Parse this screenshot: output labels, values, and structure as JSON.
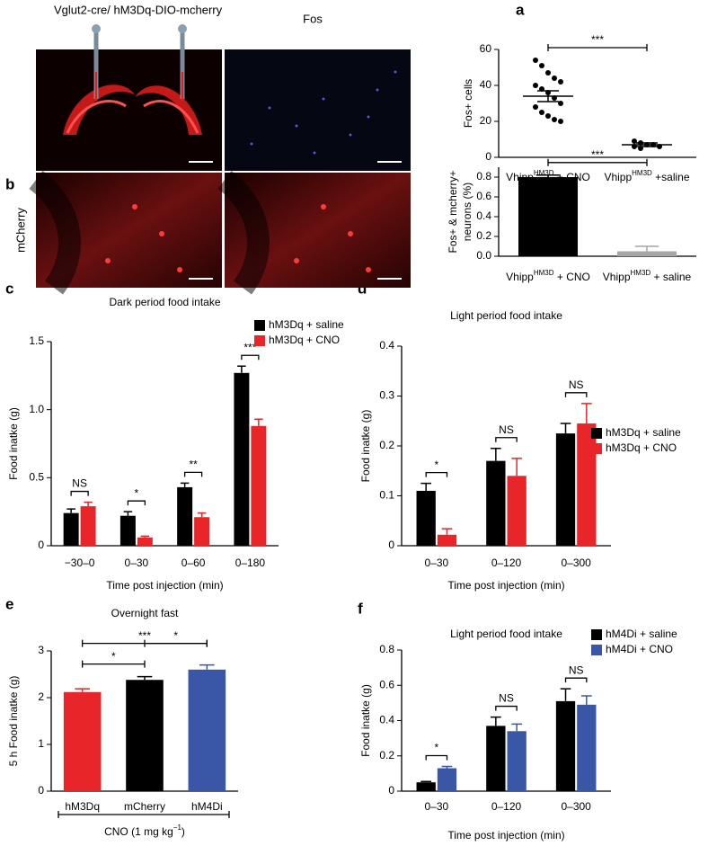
{
  "figure": {
    "header": "Vglut2-cre/ hM3Dq-DIO-mcherry",
    "panel_labels": [
      "a",
      "b",
      "c",
      "d",
      "e",
      "f"
    ],
    "image_labels": [
      "Fos",
      "mCherry"
    ]
  },
  "chart_data": [
    {
      "type": "dot",
      "ylabel": "Fos+ cells",
      "categories": [
        {
          "text": "Vhipp",
          "sup": "HM3D",
          "after": " + CNO"
        },
        {
          "text": "Vhipp",
          "sup": "HM3D",
          "after": " +saline"
        }
      ],
      "points": [
        [
          54,
          51,
          47,
          44,
          42,
          40,
          38,
          36,
          33,
          30,
          28,
          25,
          23,
          21,
          20
        ],
        [
          9,
          8,
          7,
          7,
          6,
          6,
          5
        ]
      ],
      "means": [
        34,
        7
      ],
      "errors": [
        3,
        1
      ],
      "color": "#000000",
      "ylim": [
        0,
        60
      ],
      "yticks": [
        0,
        20,
        40,
        60
      ],
      "comparisons": [
        {
          "label": "***",
          "groups": [
            0,
            1
          ]
        }
      ]
    },
    {
      "type": "bar",
      "ylabel": [
        "Fos+ & mcherry+",
        "neurons (%)"
      ],
      "categories": [
        {
          "text": "Vhipp",
          "sup": "HM3D",
          "after": " + CNO"
        },
        {
          "text": "Vhipp",
          "sup": "HM3D",
          "after": " + saline"
        }
      ],
      "values": [
        0.8,
        0.05
      ],
      "errors": [
        0.02,
        0.05
      ],
      "colors": [
        "#000000",
        "#a6a6a6"
      ],
      "ylim": [
        0,
        0.9
      ],
      "yticks": [
        {
          "value": 0,
          "label": "0.0"
        },
        0.2,
        0.4,
        0.6,
        0.8
      ],
      "comparisons": [
        {
          "label": "***",
          "groups": [
            0,
            1
          ]
        }
      ]
    },
    {
      "type": "grouped_bar",
      "title": "Dark period food intake",
      "ylabel": "Food inatke (g)",
      "xlabel": "Time post injection (min)",
      "categories": [
        "−30–0",
        "0–30",
        "0–60",
        "0–180"
      ],
      "series": [
        {
          "name": "hM3Dq + saline",
          "color": "#000000",
          "values": [
            0.24,
            0.22,
            0.43,
            1.27
          ],
          "errors": [
            0.03,
            0.03,
            0.03,
            0.05
          ]
        },
        {
          "name": "hM3Dq + CNO",
          "color": "#e8262a",
          "values": [
            0.29,
            0.06,
            0.21,
            0.88
          ],
          "errors": [
            0.03,
            0.01,
            0.03,
            0.05
          ]
        }
      ],
      "annotations": [
        "NS",
        "*",
        "**",
        "***"
      ],
      "legend": "upper right",
      "ylim": [
        0,
        1.5
      ],
      "yticks": [
        0,
        0.5,
        {
          "value": 1,
          "label": "1.0"
        },
        1.5
      ]
    },
    {
      "type": "grouped_bar",
      "title": "Light period food intake",
      "ylabel": "Food inatke (g)",
      "xlabel": "Time post injection (min)",
      "categories": [
        "0–30",
        "0–120",
        "0–300"
      ],
      "series": [
        {
          "name": "hM3Dq + saline",
          "color": "#000000",
          "values": [
            0.11,
            0.17,
            0.225
          ],
          "errors": [
            0.015,
            0.025,
            0.02
          ]
        },
        {
          "name": "hM3Dq + CNO",
          "color": "#e8262a",
          "values": [
            0.022,
            0.14,
            0.245
          ],
          "errors": [
            0.012,
            0.035,
            0.04
          ]
        }
      ],
      "annotations": [
        "*",
        "NS",
        "NS"
      ],
      "legend": "upper right",
      "ylim": [
        0,
        0.4
      ],
      "yticks": [
        0,
        0.1,
        0.2,
        0.3,
        0.4
      ]
    },
    {
      "type": "bar",
      "title": "Overnight fast",
      "ylabel": "5 h Food inatke (g)",
      "categories": [
        "hM3Dq",
        "mCherry",
        "hM4Di"
      ],
      "values": [
        2.12,
        2.38,
        2.6
      ],
      "errors": [
        0.07,
        0.07,
        0.1
      ],
      "colors": [
        "#e8262a",
        "#000000",
        "#3a57a7"
      ],
      "ylim": [
        0,
        3
      ],
      "yticks": [
        0,
        1,
        2,
        3
      ],
      "comparisons": [
        {
          "label": "*",
          "groups": [
            0,
            1
          ]
        },
        {
          "label": "*",
          "groups": [
            1,
            2
          ]
        },
        {
          "label": "***",
          "groups": [
            0,
            2
          ]
        }
      ],
      "note": {
        "text": "CNO (1 mg kg",
        "sup": "−1",
        "after": ")"
      }
    },
    {
      "type": "grouped_bar",
      "title": "Light period food intake",
      "ylabel": "Food inatke (g)",
      "xlabel": "Time post injection (min)",
      "categories": [
        "0–30",
        "0–120",
        "0–300"
      ],
      "series": [
        {
          "name": "hM4Di + saline",
          "color": "#000000",
          "values": [
            0.05,
            0.37,
            0.51
          ],
          "errors": [
            0.005,
            0.05,
            0.07
          ]
        },
        {
          "name": "hM4Di + CNO",
          "color": "#3a57a7",
          "values": [
            0.13,
            0.34,
            0.49
          ],
          "errors": [
            0.01,
            0.04,
            0.05
          ]
        }
      ],
      "annotations": [
        "*",
        "NS",
        "NS"
      ],
      "legend": "upper right",
      "ylim": [
        0,
        0.8
      ],
      "yticks": [
        0,
        0.2,
        0.4,
        0.6,
        0.8
      ]
    }
  ]
}
